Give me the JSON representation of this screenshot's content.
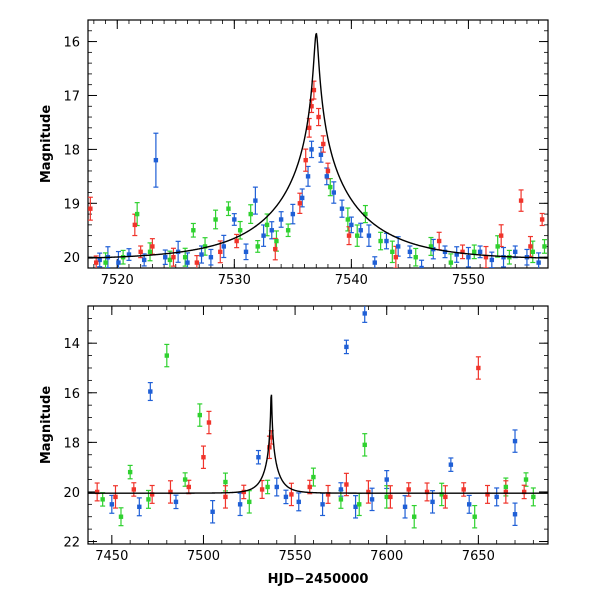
{
  "chart_data": [
    {
      "type": "scatter",
      "xlabel": "",
      "ylabel": "Magnitude",
      "xlim": [
        7517.5,
        7556.8
      ],
      "ylim": [
        15.6,
        20.2
      ],
      "y_inverted": true,
      "xticks": [
        7520,
        7530,
        7540,
        7550
      ],
      "yticks": [
        16,
        17,
        18,
        19,
        20
      ],
      "grid": false,
      "series": [
        {
          "color": "#1f5fd6",
          "points": [
            [
              7518.5,
              20.05
            ],
            [
              7519.2,
              20.0
            ],
            [
              7520.1,
              20.1
            ],
            [
              7521.0,
              19.95
            ],
            [
              7522.3,
              20.05
            ],
            [
              7523.3,
              18.2
            ],
            [
              7524.1,
              20.0
            ],
            [
              7525.2,
              19.9
            ],
            [
              7526.0,
              20.1
            ],
            [
              7527.2,
              19.95
            ],
            [
              7528.0,
              20.0
            ],
            [
              7529.1,
              19.8
            ],
            [
              7530.0,
              19.3
            ],
            [
              7531.0,
              19.9
            ],
            [
              7531.8,
              18.95
            ],
            [
              7532.5,
              19.6
            ],
            [
              7533.2,
              19.5
            ],
            [
              7534.0,
              19.3
            ],
            [
              7535.0,
              19.2
            ],
            [
              7535.8,
              18.9
            ],
            [
              7536.3,
              18.5
            ],
            [
              7536.6,
              18.0
            ],
            [
              7537.4,
              18.1
            ],
            [
              7537.9,
              18.5
            ],
            [
              7538.5,
              18.8
            ],
            [
              7539.2,
              19.1
            ],
            [
              7540.0,
              19.4
            ],
            [
              7540.8,
              19.5
            ],
            [
              7541.5,
              19.6
            ],
            [
              7542.0,
              20.1
            ],
            [
              7543.0,
              19.7
            ],
            [
              7544.0,
              19.8
            ],
            [
              7545.0,
              19.9
            ],
            [
              7546.0,
              20.2
            ],
            [
              7547.0,
              19.85
            ],
            [
              7548.0,
              19.9
            ],
            [
              7549.0,
              19.95
            ],
            [
              7550.0,
              20.0
            ],
            [
              7551.0,
              19.9
            ],
            [
              7552.0,
              20.05
            ],
            [
              7553.0,
              20.0
            ],
            [
              7554.0,
              19.9
            ],
            [
              7555.0,
              20.0
            ],
            [
              7556.0,
              20.1
            ]
          ]
        },
        {
          "color": "#2fd12f",
          "points": [
            [
              7519.0,
              20.1
            ],
            [
              7520.5,
              20.0
            ],
            [
              7521.7,
              19.2
            ],
            [
              7522.8,
              19.9
            ],
            [
              7524.5,
              20.05
            ],
            [
              7525.8,
              20.0
            ],
            [
              7526.5,
              19.5
            ],
            [
              7527.5,
              19.8
            ],
            [
              7528.4,
              19.3
            ],
            [
              7529.5,
              19.1
            ],
            [
              7530.5,
              19.5
            ],
            [
              7531.4,
              19.2
            ],
            [
              7532.0,
              19.8
            ],
            [
              7532.8,
              19.4
            ],
            [
              7533.6,
              19.7
            ],
            [
              7534.6,
              19.5
            ],
            [
              7538.2,
              18.7
            ],
            [
              7539.7,
              19.3
            ],
            [
              7540.5,
              19.6
            ],
            [
              7541.2,
              19.2
            ],
            [
              7542.5,
              19.7
            ],
            [
              7543.5,
              19.9
            ],
            [
              7545.5,
              20.0
            ],
            [
              7546.8,
              19.8
            ],
            [
              7548.5,
              20.1
            ],
            [
              7550.5,
              19.9
            ],
            [
              7552.5,
              19.8
            ],
            [
              7553.5,
              20.0
            ],
            [
              7555.5,
              19.9
            ],
            [
              7556.5,
              19.8
            ]
          ]
        },
        {
          "color": "#f0342b",
          "points": [
            [
              7517.7,
              19.1
            ],
            [
              7518.2,
              20.1
            ],
            [
              7521.5,
              19.4
            ],
            [
              7522.0,
              19.9
            ],
            [
              7523.0,
              19.8
            ],
            [
              7524.8,
              20.0
            ],
            [
              7526.8,
              20.1
            ],
            [
              7528.8,
              19.9
            ],
            [
              7530.2,
              19.7
            ],
            [
              7533.5,
              19.85
            ],
            [
              7535.6,
              19.0
            ],
            [
              7536.1,
              18.2
            ],
            [
              7536.4,
              17.6
            ],
            [
              7536.6,
              17.2
            ],
            [
              7536.8,
              16.9
            ],
            [
              7537.2,
              17.4
            ],
            [
              7537.6,
              17.9
            ],
            [
              7538.0,
              18.4
            ],
            [
              7539.8,
              19.6
            ],
            [
              7543.8,
              20.0
            ],
            [
              7547.5,
              19.7
            ],
            [
              7549.5,
              19.9
            ],
            [
              7551.5,
              20.0
            ],
            [
              7552.8,
              19.6
            ],
            [
              7554.5,
              18.95
            ],
            [
              7555.3,
              19.8
            ],
            [
              7556.3,
              19.3
            ]
          ]
        }
      ],
      "model_curve": {
        "color": "#000000",
        "peak_x": 7537.0,
        "peak_y": 15.85,
        "baseline_y": 20.05
      }
    },
    {
      "type": "scatter",
      "xlabel": "HJD−2450000",
      "ylabel": "Magnitude",
      "xlim": [
        7437,
        7688
      ],
      "ylim": [
        12.5,
        22.1
      ],
      "y_inverted": true,
      "xticks": [
        7450,
        7500,
        7550,
        7600,
        7650
      ],
      "yticks": [
        14,
        16,
        18,
        20,
        22
      ],
      "grid": false,
      "series": [
        {
          "color": "#1f5fd6",
          "points": [
            [
              7471,
              15.95
            ],
            [
              7578,
              14.15
            ],
            [
              7588,
              12.8
            ],
            [
              7670,
              17.95
            ],
            [
              7530,
              18.6
            ],
            [
              7450,
              20.5
            ],
            [
              7465,
              20.6
            ],
            [
              7485,
              20.4
            ],
            [
              7505,
              20.8
            ],
            [
              7520,
              20.5
            ],
            [
              7540,
              19.8
            ],
            [
              7545,
              20.2
            ],
            [
              7552,
              20.4
            ],
            [
              7565,
              20.5
            ],
            [
              7575,
              19.9
            ],
            [
              7583,
              20.6
            ],
            [
              7592,
              20.3
            ],
            [
              7600,
              19.5
            ],
            [
              7610,
              20.6
            ],
            [
              7625,
              20.4
            ],
            [
              7635,
              18.9
            ],
            [
              7645,
              20.5
            ],
            [
              7660,
              20.2
            ],
            [
              7670,
              20.9
            ]
          ]
        },
        {
          "color": "#2fd12f",
          "points": [
            [
              7480,
              14.5
            ],
            [
              7498,
              16.9
            ],
            [
              7588,
              18.1
            ],
            [
              7460,
              19.2
            ],
            [
              7445,
              20.3
            ],
            [
              7455,
              21.0
            ],
            [
              7470,
              20.3
            ],
            [
              7490,
              19.5
            ],
            [
              7512,
              19.6
            ],
            [
              7525,
              20.4
            ],
            [
              7535,
              19.8
            ],
            [
              7560,
              19.4
            ],
            [
              7575,
              20.3
            ],
            [
              7585,
              20.5
            ],
            [
              7600,
              20.2
            ],
            [
              7615,
              21.0
            ],
            [
              7630,
              20.1
            ],
            [
              7648,
              21.0
            ],
            [
              7665,
              19.8
            ],
            [
              7676,
              19.5
            ],
            [
              7680,
              20.2
            ]
          ]
        },
        {
          "color": "#f0342b",
          "points": [
            [
              7503,
              17.2
            ],
            [
              7500,
              18.6
            ],
            [
              7650,
              15.0
            ],
            [
              7442,
              20.0
            ],
            [
              7452,
              20.2
            ],
            [
              7462,
              19.9
            ],
            [
              7472,
              20.1
            ],
            [
              7482,
              20.0
            ],
            [
              7492,
              19.8
            ],
            [
              7512,
              20.2
            ],
            [
              7522,
              20.0
            ],
            [
              7532,
              19.9
            ],
            [
              7536,
              18.2
            ],
            [
              7537,
              17.8
            ],
            [
              7548,
              20.1
            ],
            [
              7558,
              19.8
            ],
            [
              7568,
              20.1
            ],
            [
              7578,
              19.7
            ],
            [
              7590,
              20.0
            ],
            [
              7602,
              20.2
            ],
            [
              7612,
              19.9
            ],
            [
              7622,
              20.0
            ],
            [
              7632,
              20.2
            ],
            [
              7642,
              19.9
            ],
            [
              7655,
              20.1
            ],
            [
              7665,
              20.0
            ],
            [
              7675,
              20.0
            ]
          ]
        }
      ],
      "model_curve": {
        "color": "#000000",
        "peak_x": 7537.0,
        "peak_y": 15.85,
        "baseline_y": 20.05
      }
    }
  ]
}
